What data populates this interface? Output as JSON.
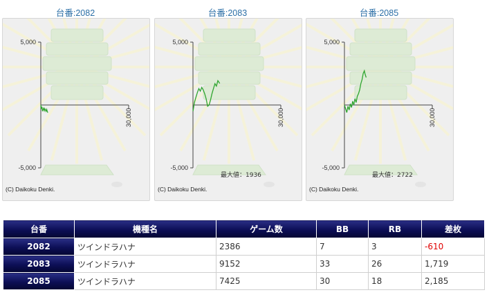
{
  "graphs": [
    {
      "title": "台番:2082",
      "y_top": "5,000",
      "y_bottom": "-5,000",
      "x_right": "30,000",
      "max_label": "",
      "copyright": "(C) Daikoku Denki."
    },
    {
      "title": "台番:2083",
      "y_top": "5,000",
      "y_bottom": "-5,000",
      "x_right": "30,000",
      "max_label": "最大値：1936",
      "copyright": "(C) Daikoku Denki."
    },
    {
      "title": "台番:2085",
      "y_top": "5,000",
      "y_bottom": "-5,000",
      "x_right": "30,000",
      "max_label": "最大値：2722",
      "copyright": "(C) Daikoku Denki."
    }
  ],
  "chart_data": [
    {
      "type": "line",
      "x_range": [
        0,
        30000
      ],
      "ylim": [
        -5000,
        5000
      ],
      "x": [
        0,
        200,
        400,
        600,
        800,
        1000,
        1200,
        1400,
        1600,
        1800,
        2000,
        2200,
        2386
      ],
      "values": [
        0,
        -300,
        -150,
        -500,
        -350,
        -250,
        -450,
        -300,
        -400,
        -500,
        -350,
        -500,
        -610
      ]
    },
    {
      "type": "line",
      "x_range": [
        0,
        30000
      ],
      "ylim": [
        -5000,
        5000
      ],
      "x": [
        0,
        500,
        1000,
        1500,
        2000,
        2500,
        3000,
        3500,
        4000,
        4500,
        5000,
        5500,
        6000,
        6500,
        7000,
        7500,
        8000,
        8500,
        9152
      ],
      "values": [
        -500,
        200,
        600,
        1000,
        1300,
        1100,
        1400,
        1200,
        900,
        500,
        -100,
        0,
        400,
        900,
        1300,
        1700,
        1500,
        1936,
        1719
      ]
    },
    {
      "type": "line",
      "x_range": [
        0,
        30000
      ],
      "ylim": [
        -5000,
        5000
      ],
      "x": [
        0,
        400,
        800,
        1200,
        1600,
        2000,
        2400,
        2800,
        3200,
        3600,
        4000,
        4400,
        4800,
        5200,
        5600,
        6000,
        6400,
        6800,
        7000,
        7425
      ],
      "values": [
        0,
        -300,
        -600,
        -100,
        -400,
        100,
        -200,
        300,
        0,
        500,
        200,
        700,
        900,
        1200,
        1700,
        2000,
        2500,
        2722,
        2500,
        2185
      ]
    }
  ],
  "table": {
    "headers": [
      "台番",
      "機種名",
      "ゲーム数",
      "BB",
      "RB",
      "差枚"
    ],
    "rows": [
      [
        "2082",
        "ツインドラハナ",
        "2386",
        "7",
        "3",
        "-610"
      ],
      [
        "2083",
        "ツインドラハナ",
        "9152",
        "33",
        "26",
        "1,719"
      ],
      [
        "2085",
        "ツインドラハナ",
        "7425",
        "30",
        "18",
        "2,185"
      ]
    ]
  },
  "colors": {
    "line": "#2fa52f",
    "header_bg": "#0c0e55",
    "negative": "#e00000",
    "title": "#2a6ea6"
  }
}
